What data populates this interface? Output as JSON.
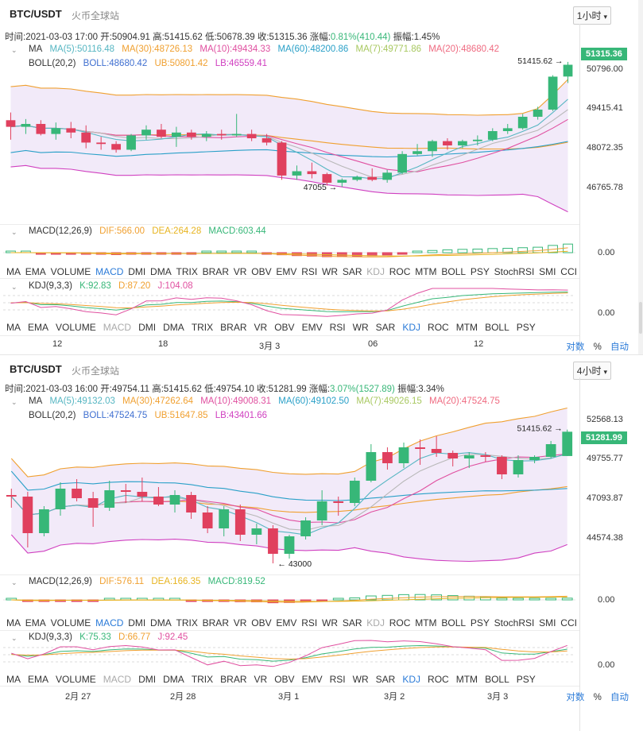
{
  "colors": {
    "up": "#37b778",
    "down": "#e0405e",
    "accent": "#2b7bd8",
    "ma5": "#56b6c2",
    "ma30": "#f0a030",
    "ma10": "#e050a0",
    "ma60": "#2aa0c8",
    "ma7": "#a8c860",
    "ma20": "#ef6a80",
    "boll": "#3f6fd0",
    "ub": "#f0a030",
    "lb": "#d040c0",
    "dif": "#f0a030",
    "dea": "#e7b420"
  },
  "panel1": {
    "symbol": "BTC/USDT",
    "exchange": "火币全球站",
    "timeframe": "1小时",
    "info": {
      "time": "时间:2021-03-03 17:00",
      "open": "开:50904.91",
      "high": "高:51415.62",
      "low": "低:50678.39",
      "close": "收:51315.36",
      "change_label": "涨幅:",
      "change_value": "0.81%(410.44)",
      "amp": "振幅:1.45%"
    },
    "ma_label": "MA",
    "ma": {
      "ma5": "MA(5):50116.48",
      "ma30": "MA(30):48726.13",
      "ma10": "MA(10):49434.33",
      "ma60": "MA(60):48200.86",
      "ma7": "MA(7):49771.86",
      "ma20": "MA(20):48680.42"
    },
    "boll": {
      "name": "BOLL(20,2)",
      "boll": "BOLL:48680.42",
      "ub": "UB:50801.42",
      "lb": "LB:46559.41"
    },
    "price_levels": [
      "50796.00",
      "49415.41",
      "48072.35",
      "46765.78"
    ],
    "current_price": "51315.36",
    "high_annot": "51415.62",
    "low_annot": "47055",
    "macd": {
      "name": "MACD(12,26,9)",
      "dif": "DIF:566.00",
      "dea": "DEA:264.28",
      "macd": "MACD:603.44",
      "zero": "0.00"
    },
    "kdj": {
      "name": "KDJ(9,3,3)",
      "k": "K:92.83",
      "d": "D:87.20",
      "j": "J:104.08",
      "zero": "0.00"
    },
    "tabs_row1": [
      "MA",
      "EMA",
      "VOLUME",
      "MACD",
      "DMI",
      "DMA",
      "TRIX",
      "BRAR",
      "VR",
      "OBV",
      "EMV",
      "RSI",
      "WR",
      "SAR",
      "KDJ",
      "ROC",
      "MTM",
      "BOLL",
      "PSY",
      "StochRSI",
      "SMI",
      "CCI"
    ],
    "tabs_row2": [
      "MA",
      "EMA",
      "VOLUME",
      "MACD",
      "DMI",
      "DMA",
      "TRIX",
      "BRAR",
      "VR",
      "OBV",
      "EMV",
      "RSI",
      "WR",
      "SAR",
      "KDJ",
      "ROC",
      "MTM",
      "BOLL",
      "PSY"
    ],
    "x_labels": [
      "12",
      "18",
      "3月 3",
      "06",
      "12"
    ],
    "options": {
      "log": "对数",
      "pct": "%",
      "auto": "自动"
    }
  },
  "panel2": {
    "symbol": "BTC/USDT",
    "exchange": "火币全球站",
    "timeframe": "4小时",
    "info": {
      "time": "时间:2021-03-03 16:00",
      "open": "开:49754.11",
      "high": "高:51415.62",
      "low": "低:49754.10",
      "close": "收:51281.99",
      "change_label": "涨幅:",
      "change_value": "3.07%(1527.89)",
      "amp": "振幅:3.34%"
    },
    "ma_label": "MA",
    "ma": {
      "ma5": "MA(5):49132.03",
      "ma30": "MA(30):47262.64",
      "ma10": "MA(10):49008.31",
      "ma60": "MA(60):49102.50",
      "ma7": "MA(7):49026.15",
      "ma20": "MA(20):47524.75"
    },
    "boll": {
      "name": "BOLL(20,2)",
      "boll": "BOLL:47524.75",
      "ub": "UB:51647.85",
      "lb": "LB:43401.66"
    },
    "price_levels": [
      "52568.13",
      "49755.77",
      "47093.87",
      "44574.38"
    ],
    "current_price": "51281.99",
    "high_annot": "51415.62",
    "low_annot": "43000",
    "macd": {
      "name": "MACD(12,26,9)",
      "dif": "DIF:576.11",
      "dea": "DEA:166.35",
      "macd": "MACD:819.52",
      "zero": "0.00"
    },
    "kdj": {
      "name": "KDJ(9,3,3)",
      "k": "K:75.33",
      "d": "D:66.77",
      "j": "J:92.45",
      "zero": "0.00"
    },
    "tabs_row1": [
      "MA",
      "EMA",
      "VOLUME",
      "MACD",
      "DMI",
      "DMA",
      "TRIX",
      "BRAR",
      "VR",
      "OBV",
      "EMV",
      "RSI",
      "WR",
      "SAR",
      "KDJ",
      "ROC",
      "MTM",
      "BOLL",
      "PSY",
      "StochRSI",
      "SMI",
      "CCI"
    ],
    "tabs_row2": [
      "MA",
      "EMA",
      "VOLUME",
      "MACD",
      "DMI",
      "DMA",
      "TRIX",
      "BRAR",
      "VR",
      "OBV",
      "EMV",
      "RSI",
      "WR",
      "SAR",
      "KDJ",
      "ROC",
      "MTM",
      "BOLL",
      "PSY"
    ],
    "x_labels": [
      "2月 27",
      "2月 28",
      "3月 1",
      "3月 2",
      "3月 3"
    ],
    "options": {
      "log": "对数",
      "pct": "%",
      "auto": "自动"
    }
  },
  "chart_data": [
    {
      "type": "candlestick",
      "title": "BTC/USDT 1小时",
      "ylim": [
        46200,
        51800
      ],
      "candles": [
        {
          "o": 49380,
          "h": 49650,
          "l": 48700,
          "c": 49150
        },
        {
          "o": 49150,
          "h": 49420,
          "l": 48900,
          "c": 49250
        },
        {
          "o": 49250,
          "h": 49380,
          "l": 48850,
          "c": 48900
        },
        {
          "o": 48900,
          "h": 49300,
          "l": 48700,
          "c": 49100
        },
        {
          "o": 49100,
          "h": 49320,
          "l": 48750,
          "c": 48950
        },
        {
          "o": 48950,
          "h": 49200,
          "l": 48400,
          "c": 48600
        },
        {
          "o": 48600,
          "h": 48800,
          "l": 48350,
          "c": 48550
        },
        {
          "o": 48550,
          "h": 48650,
          "l": 48250,
          "c": 48350
        },
        {
          "o": 48350,
          "h": 48900,
          "l": 48300,
          "c": 48850
        },
        {
          "o": 48850,
          "h": 49200,
          "l": 48700,
          "c": 49050
        },
        {
          "o": 49050,
          "h": 49250,
          "l": 48750,
          "c": 48800
        },
        {
          "o": 48800,
          "h": 49150,
          "l": 48450,
          "c": 48950
        },
        {
          "o": 48950,
          "h": 49050,
          "l": 48700,
          "c": 48800
        },
        {
          "o": 48800,
          "h": 49000,
          "l": 48650,
          "c": 48900
        },
        {
          "o": 48900,
          "h": 49050,
          "l": 48700,
          "c": 48850
        },
        {
          "o": 48850,
          "h": 49600,
          "l": 48800,
          "c": 48900
        },
        {
          "o": 48900,
          "h": 49050,
          "l": 48650,
          "c": 48750
        },
        {
          "o": 48750,
          "h": 48900,
          "l": 48500,
          "c": 48600
        },
        {
          "o": 48600,
          "h": 48650,
          "l": 47300,
          "c": 47450
        },
        {
          "o": 47450,
          "h": 47800,
          "l": 47300,
          "c": 47600
        },
        {
          "o": 47600,
          "h": 47900,
          "l": 47350,
          "c": 47500
        },
        {
          "o": 47500,
          "h": 47550,
          "l": 47100,
          "c": 47200
        },
        {
          "o": 47200,
          "h": 47350,
          "l": 47055,
          "c": 47300
        },
        {
          "o": 47300,
          "h": 47450,
          "l": 47250,
          "c": 47400
        },
        {
          "o": 47400,
          "h": 47700,
          "l": 47250,
          "c": 47300
        },
        {
          "o": 47300,
          "h": 47650,
          "l": 47200,
          "c": 47550
        },
        {
          "o": 47550,
          "h": 48300,
          "l": 47500,
          "c": 48200
        },
        {
          "o": 48200,
          "h": 48550,
          "l": 48150,
          "c": 48300
        },
        {
          "o": 48300,
          "h": 48700,
          "l": 48100,
          "c": 48650
        },
        {
          "o": 48650,
          "h": 48750,
          "l": 48350,
          "c": 48500
        },
        {
          "o": 48500,
          "h": 48700,
          "l": 48400,
          "c": 48650
        },
        {
          "o": 48650,
          "h": 48850,
          "l": 48500,
          "c": 48700
        },
        {
          "o": 48700,
          "h": 49100,
          "l": 48650,
          "c": 49000
        },
        {
          "o": 49000,
          "h": 49250,
          "l": 48900,
          "c": 49100
        },
        {
          "o": 49100,
          "h": 49600,
          "l": 49050,
          "c": 49500
        },
        {
          "o": 49500,
          "h": 49850,
          "l": 49400,
          "c": 49750
        },
        {
          "o": 49750,
          "h": 50950,
          "l": 49700,
          "c": 50900
        },
        {
          "o": 50904,
          "h": 51415,
          "l": 50678,
          "c": 51315
        }
      ],
      "annotations": {
        "high": 51415.62,
        "low": 47055
      }
    },
    {
      "type": "candlestick",
      "title": "BTC/USDT 4小时",
      "ylim": [
        42800,
        53200
      ],
      "candles": [
        {
          "o": 47300,
          "h": 47700,
          "l": 46500,
          "c": 47200
        },
        {
          "o": 47200,
          "h": 47500,
          "l": 44000,
          "c": 44900
        },
        {
          "o": 44900,
          "h": 46600,
          "l": 44700,
          "c": 46400
        },
        {
          "o": 46400,
          "h": 48100,
          "l": 46000,
          "c": 47700
        },
        {
          "o": 47700,
          "h": 48300,
          "l": 46900,
          "c": 47100
        },
        {
          "o": 47100,
          "h": 47500,
          "l": 45300,
          "c": 46500
        },
        {
          "o": 46500,
          "h": 48200,
          "l": 46300,
          "c": 47600
        },
        {
          "o": 47600,
          "h": 48000,
          "l": 46800,
          "c": 47500
        },
        {
          "o": 47500,
          "h": 48400,
          "l": 46900,
          "c": 47200
        },
        {
          "o": 47200,
          "h": 47800,
          "l": 46600,
          "c": 46700
        },
        {
          "o": 46700,
          "h": 47600,
          "l": 46200,
          "c": 47300
        },
        {
          "o": 47300,
          "h": 47500,
          "l": 45800,
          "c": 46200
        },
        {
          "o": 46200,
          "h": 46600,
          "l": 44900,
          "c": 45200
        },
        {
          "o": 45200,
          "h": 46600,
          "l": 44700,
          "c": 46400
        },
        {
          "o": 46400,
          "h": 46700,
          "l": 44400,
          "c": 44800
        },
        {
          "o": 44800,
          "h": 45500,
          "l": 44200,
          "c": 45200
        },
        {
          "o": 45200,
          "h": 45400,
          "l": 43000,
          "c": 43600
        },
        {
          "o": 43600,
          "h": 44800,
          "l": 43300,
          "c": 44700
        },
        {
          "o": 44700,
          "h": 45900,
          "l": 44500,
          "c": 45700
        },
        {
          "o": 45700,
          "h": 47600,
          "l": 45400,
          "c": 46900
        },
        {
          "o": 46900,
          "h": 47200,
          "l": 46000,
          "c": 46800
        },
        {
          "o": 46800,
          "h": 48400,
          "l": 46600,
          "c": 48200
        },
        {
          "o": 48200,
          "h": 50500,
          "l": 48100,
          "c": 50000
        },
        {
          "o": 50000,
          "h": 50300,
          "l": 48900,
          "c": 49300
        },
        {
          "o": 49300,
          "h": 50600,
          "l": 49000,
          "c": 50300
        },
        {
          "o": 50300,
          "h": 50800,
          "l": 49200,
          "c": 50200
        },
        {
          "o": 50200,
          "h": 51000,
          "l": 49700,
          "c": 49950
        },
        {
          "o": 49950,
          "h": 50100,
          "l": 49100,
          "c": 49600
        },
        {
          "o": 49600,
          "h": 50000,
          "l": 49000,
          "c": 49800
        },
        {
          "o": 49800,
          "h": 50000,
          "l": 49400,
          "c": 49700
        },
        {
          "o": 49700,
          "h": 49800,
          "l": 48300,
          "c": 48600
        },
        {
          "o": 48600,
          "h": 49800,
          "l": 48400,
          "c": 49500
        },
        {
          "o": 49500,
          "h": 49800,
          "l": 49300,
          "c": 49700
        },
        {
          "o": 49700,
          "h": 50700,
          "l": 49600,
          "c": 50500
        },
        {
          "o": 49754,
          "h": 51415,
          "l": 49754,
          "c": 51282
        }
      ],
      "annotations": {
        "high": 51415.62,
        "low": 43000
      }
    }
  ]
}
